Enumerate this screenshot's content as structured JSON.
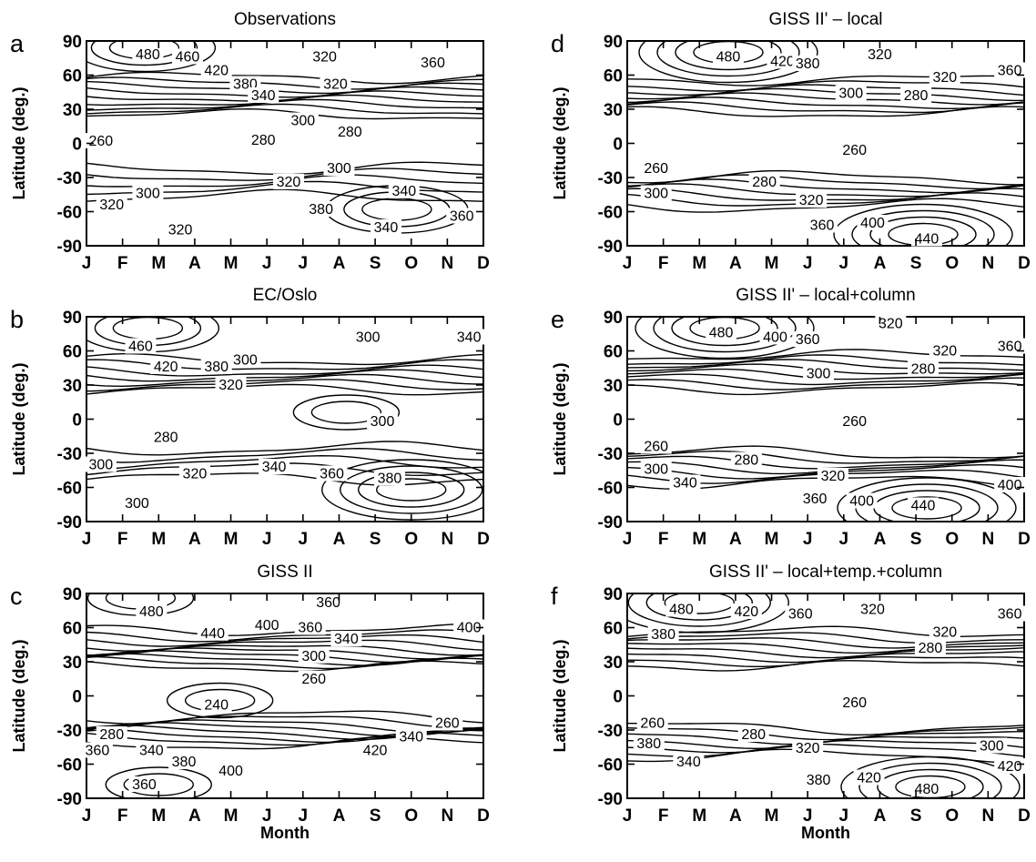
{
  "figure": {
    "xlabel": "Month",
    "ylabel": "Latitude (deg.)"
  },
  "chart_data": [
    {
      "type": "contour",
      "panel_label": "a",
      "title": "Observations",
      "xlabel": "",
      "ylabel": "Latitude (deg.)",
      "x_ticks": [
        "J",
        "F",
        "M",
        "A",
        "M",
        "J",
        "J",
        "A",
        "S",
        "O",
        "N",
        "D"
      ],
      "y_ticks": [
        90,
        60,
        30,
        0,
        -30,
        -60,
        -90
      ],
      "ylim": [
        -90,
        90
      ],
      "contour_labels": [
        {
          "text": "480",
          "month": 1.7,
          "lat": 78
        },
        {
          "text": "460",
          "month": 2.8,
          "lat": 76
        },
        {
          "text": "420",
          "month": 3.6,
          "lat": 64
        },
        {
          "text": "380",
          "month": 4.4,
          "lat": 52
        },
        {
          "text": "340",
          "month": 4.9,
          "lat": 42
        },
        {
          "text": "320",
          "month": 6.6,
          "lat": 76
        },
        {
          "text": "320",
          "month": 6.9,
          "lat": 52
        },
        {
          "text": "360",
          "month": 9.6,
          "lat": 71
        },
        {
          "text": "300",
          "month": 6.0,
          "lat": 20
        },
        {
          "text": "280",
          "month": 4.9,
          "lat": 3
        },
        {
          "text": "280",
          "month": 7.3,
          "lat": 10
        },
        {
          "text": "260",
          "month": 0.4,
          "lat": 2
        },
        {
          "text": "300",
          "month": 7.0,
          "lat": -22
        },
        {
          "text": "320",
          "month": 5.6,
          "lat": -34
        },
        {
          "text": "300",
          "month": 1.7,
          "lat": -44
        },
        {
          "text": "340",
          "month": 8.8,
          "lat": -42
        },
        {
          "text": "320",
          "month": 0.7,
          "lat": -54
        },
        {
          "text": "380",
          "month": 6.5,
          "lat": -58
        },
        {
          "text": "320",
          "month": 2.6,
          "lat": -76
        },
        {
          "text": "340",
          "month": 8.3,
          "lat": -74
        },
        {
          "text": "360",
          "month": 10.4,
          "lat": -64
        }
      ]
    },
    {
      "type": "contour",
      "panel_label": "b",
      "title": "EC/Oslo",
      "xlabel": "",
      "ylabel": "Latitude (deg.)",
      "x_ticks": [
        "J",
        "F",
        "M",
        "A",
        "M",
        "J",
        "J",
        "A",
        "S",
        "O",
        "N",
        "D"
      ],
      "y_ticks": [
        90,
        60,
        30,
        0,
        -30,
        -60,
        -90
      ],
      "ylim": [
        -90,
        90
      ],
      "contour_labels": [
        {
          "text": "460",
          "month": 1.5,
          "lat": 64
        },
        {
          "text": "420",
          "month": 2.2,
          "lat": 46
        },
        {
          "text": "380",
          "month": 3.6,
          "lat": 46
        },
        {
          "text": "320",
          "month": 4.0,
          "lat": 30
        },
        {
          "text": "300",
          "month": 4.4,
          "lat": 52
        },
        {
          "text": "300",
          "month": 7.8,
          "lat": 72
        },
        {
          "text": "340",
          "month": 10.6,
          "lat": 72
        },
        {
          "text": "300",
          "month": 8.2,
          "lat": -2
        },
        {
          "text": "280",
          "month": 2.2,
          "lat": -16
        },
        {
          "text": "300",
          "month": 0.4,
          "lat": -40
        },
        {
          "text": "320",
          "month": 3.0,
          "lat": -48
        },
        {
          "text": "340",
          "month": 5.2,
          "lat": -42
        },
        {
          "text": "360",
          "month": 6.8,
          "lat": -48
        },
        {
          "text": "380",
          "month": 8.4,
          "lat": -52
        },
        {
          "text": "300",
          "month": 1.4,
          "lat": -74
        }
      ]
    },
    {
      "type": "contour",
      "panel_label": "c",
      "title": "GISS II",
      "xlabel": "Month",
      "ylabel": "Latitude (deg.)",
      "x_ticks": [
        "J",
        "F",
        "M",
        "A",
        "M",
        "J",
        "J",
        "A",
        "S",
        "O",
        "N",
        "D"
      ],
      "y_ticks": [
        90,
        60,
        30,
        0,
        -30,
        -60,
        -90
      ],
      "ylim": [
        -90,
        90
      ],
      "contour_labels": [
        {
          "text": "480",
          "month": 1.8,
          "lat": 74
        },
        {
          "text": "440",
          "month": 3.5,
          "lat": 55
        },
        {
          "text": "400",
          "month": 5.0,
          "lat": 62
        },
        {
          "text": "360",
          "month": 6.2,
          "lat": 60
        },
        {
          "text": "340",
          "month": 7.2,
          "lat": 50
        },
        {
          "text": "360",
          "month": 6.7,
          "lat": 82
        },
        {
          "text": "400",
          "month": 10.6,
          "lat": 60
        },
        {
          "text": "300",
          "month": 6.3,
          "lat": 35
        },
        {
          "text": "260",
          "month": 6.3,
          "lat": 15
        },
        {
          "text": "240",
          "month": 3.6,
          "lat": -8
        },
        {
          "text": "260",
          "month": 10.0,
          "lat": -24
        },
        {
          "text": "280",
          "month": 0.7,
          "lat": -34
        },
        {
          "text": "360",
          "month": 0.3,
          "lat": -48
        },
        {
          "text": "340",
          "month": 1.8,
          "lat": -48
        },
        {
          "text": "340",
          "month": 9.0,
          "lat": -36
        },
        {
          "text": "420",
          "month": 8.0,
          "lat": -48
        },
        {
          "text": "380",
          "month": 2.7,
          "lat": -58
        },
        {
          "text": "400",
          "month": 4.0,
          "lat": -66
        },
        {
          "text": "360",
          "month": 1.6,
          "lat": -78
        }
      ]
    },
    {
      "type": "contour",
      "panel_label": "d",
      "title": "GISS II' – local",
      "xlabel": "",
      "ylabel": "Latitude (deg.)",
      "x_ticks": [
        "J",
        "F",
        "M",
        "A",
        "M",
        "J",
        "J",
        "A",
        "S",
        "O",
        "N",
        "D"
      ],
      "y_ticks": [
        90,
        60,
        30,
        0,
        -30,
        -60,
        -90
      ],
      "ylim": [
        -90,
        90
      ],
      "contour_labels": [
        {
          "text": "480",
          "month": 2.8,
          "lat": 76
        },
        {
          "text": "420",
          "month": 4.3,
          "lat": 72
        },
        {
          "text": "380",
          "month": 5.0,
          "lat": 70
        },
        {
          "text": "320",
          "month": 7.0,
          "lat": 78
        },
        {
          "text": "320",
          "month": 8.8,
          "lat": 58
        },
        {
          "text": "360",
          "month": 10.6,
          "lat": 64
        },
        {
          "text": "300",
          "month": 6.2,
          "lat": 44
        },
        {
          "text": "280",
          "month": 8.0,
          "lat": 42
        },
        {
          "text": "260",
          "month": 6.3,
          "lat": -6
        },
        {
          "text": "260",
          "month": 0.8,
          "lat": -22
        },
        {
          "text": "280",
          "month": 3.8,
          "lat": -34
        },
        {
          "text": "300",
          "month": 0.8,
          "lat": -44
        },
        {
          "text": "320",
          "month": 5.1,
          "lat": -50
        },
        {
          "text": "360",
          "month": 5.4,
          "lat": -72
        },
        {
          "text": "400",
          "month": 6.8,
          "lat": -70
        },
        {
          "text": "440",
          "month": 8.3,
          "lat": -84
        }
      ]
    },
    {
      "type": "contour",
      "panel_label": "e",
      "title": "GISS II' – local+column",
      "xlabel": "",
      "ylabel": "Latitude (deg.)",
      "x_ticks": [
        "J",
        "F",
        "M",
        "A",
        "M",
        "J",
        "J",
        "A",
        "S",
        "O",
        "N",
        "D"
      ],
      "y_ticks": [
        90,
        60,
        30,
        0,
        -30,
        -60,
        -90
      ],
      "ylim": [
        -90,
        90
      ],
      "contour_labels": [
        {
          "text": "480",
          "month": 2.6,
          "lat": 76
        },
        {
          "text": "400",
          "month": 4.1,
          "lat": 72
        },
        {
          "text": "360",
          "month": 5.0,
          "lat": 70
        },
        {
          "text": "320",
          "month": 7.3,
          "lat": 84
        },
        {
          "text": "320",
          "month": 8.8,
          "lat": 60
        },
        {
          "text": "360",
          "month": 10.6,
          "lat": 64
        },
        {
          "text": "300",
          "month": 5.3,
          "lat": 40
        },
        {
          "text": "280",
          "month": 8.2,
          "lat": 44
        },
        {
          "text": "260",
          "month": 6.3,
          "lat": -2
        },
        {
          "text": "260",
          "month": 0.8,
          "lat": -24
        },
        {
          "text": "280",
          "month": 3.3,
          "lat": -36
        },
        {
          "text": "300",
          "month": 0.8,
          "lat": -44
        },
        {
          "text": "320",
          "month": 5.7,
          "lat": -50
        },
        {
          "text": "340",
          "month": 1.6,
          "lat": -56
        },
        {
          "text": "360",
          "month": 5.2,
          "lat": -70
        },
        {
          "text": "400",
          "month": 6.5,
          "lat": -72
        },
        {
          "text": "440",
          "month": 8.2,
          "lat": -76
        },
        {
          "text": "400",
          "month": 10.6,
          "lat": -58
        }
      ]
    },
    {
      "type": "contour",
      "panel_label": "f",
      "title": "GISS II' – local+temp.+column",
      "xlabel": "Month",
      "ylabel": "Latitude (deg.)",
      "x_ticks": [
        "J",
        "F",
        "M",
        "A",
        "M",
        "J",
        "J",
        "A",
        "S",
        "O",
        "N",
        "D"
      ],
      "y_ticks": [
        90,
        60,
        30,
        0,
        -30,
        -60,
        -90
      ],
      "ylim": [
        -90,
        90
      ],
      "contour_labels": [
        {
          "text": "480",
          "month": 1.5,
          "lat": 76
        },
        {
          "text": "420",
          "month": 3.3,
          "lat": 74
        },
        {
          "text": "360",
          "month": 4.8,
          "lat": 72
        },
        {
          "text": "320",
          "month": 6.8,
          "lat": 76
        },
        {
          "text": "320",
          "month": 8.8,
          "lat": 56
        },
        {
          "text": "360",
          "month": 10.6,
          "lat": 72
        },
        {
          "text": "380",
          "month": 1.0,
          "lat": 54
        },
        {
          "text": "280",
          "month": 8.4,
          "lat": 42
        },
        {
          "text": "260",
          "month": 6.3,
          "lat": -6
        },
        {
          "text": "260",
          "month": 0.7,
          "lat": -24
        },
        {
          "text": "280",
          "month": 3.5,
          "lat": -34
        },
        {
          "text": "380",
          "month": 0.6,
          "lat": -42
        },
        {
          "text": "320",
          "month": 5.0,
          "lat": -46
        },
        {
          "text": "300",
          "month": 10.1,
          "lat": -44
        },
        {
          "text": "340",
          "month": 1.7,
          "lat": -58
        },
        {
          "text": "420",
          "month": 10.6,
          "lat": -62
        },
        {
          "text": "380",
          "month": 5.3,
          "lat": -74
        },
        {
          "text": "420",
          "month": 6.7,
          "lat": -72
        },
        {
          "text": "480",
          "month": 8.3,
          "lat": -82
        }
      ]
    }
  ]
}
